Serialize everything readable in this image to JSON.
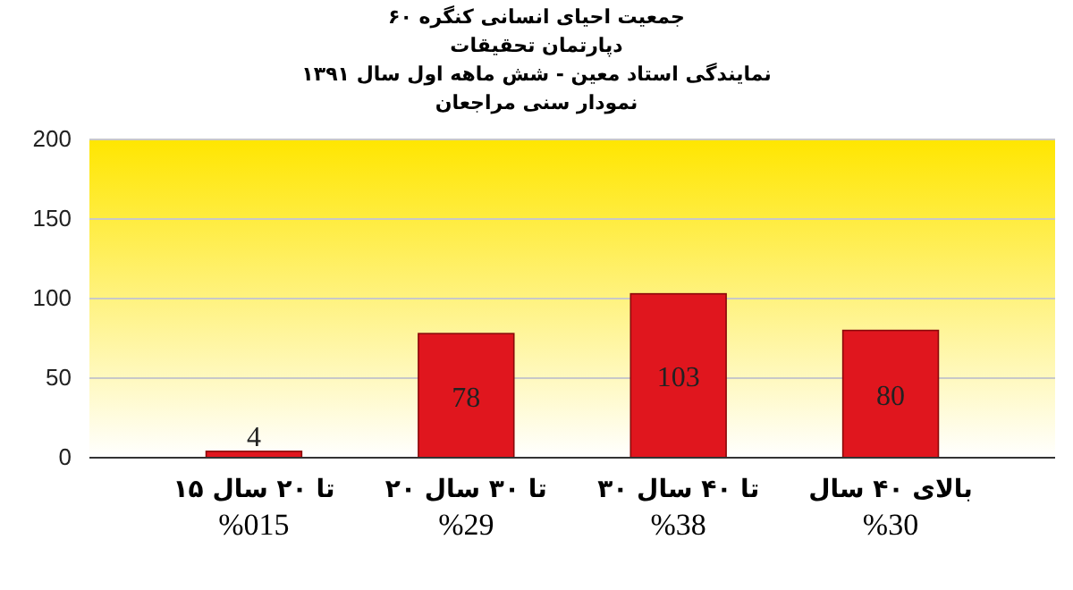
{
  "chart_data": {
    "type": "bar",
    "title": "جمعیت احیای انسانی کنگره ۶۰",
    "subtitle": "دپارتمان تحقیقات\nنمایندگی استاد معین  - شش ماهه اول سال ۱۳۹۱\nنمودار سنی مراجعان",
    "categories": [
      "۱۵ تا ۲۰ سال\n%015",
      "۲۰ تا ۳۰ سال\n%29",
      "۳۰ تا ۴۰ سال\n%38",
      "بالای ۴۰ سال\n%30"
    ],
    "values": [
      4,
      78,
      103,
      80
    ],
    "color": "#e0161e",
    "data_labels": true,
    "ylim": [
      0,
      200
    ],
    "yticks": [
      0,
      50,
      100,
      150,
      200
    ],
    "grid": "y"
  }
}
